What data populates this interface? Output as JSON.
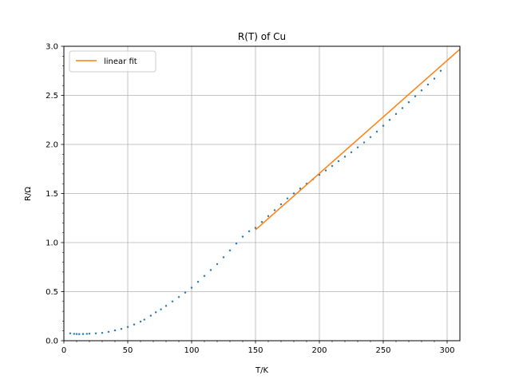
{
  "chart_data": {
    "type": "scatter",
    "title": "R(T) of Cu",
    "xlabel": "T/K",
    "ylabel": "R/Ω",
    "xlim": [
      0,
      310
    ],
    "ylim": [
      0,
      3.0
    ],
    "xticks": [
      0,
      50,
      100,
      150,
      200,
      250,
      300
    ],
    "xtick_labels": [
      "0",
      "50",
      "100",
      "150",
      "200",
      "250",
      "300"
    ],
    "yticks": [
      0.0,
      0.5,
      1.0,
      1.5,
      2.0,
      2.5,
      3.0
    ],
    "ytick_labels": [
      "0.0",
      "0.5",
      "1.0",
      "1.5",
      "2.0",
      "2.5",
      "3.0"
    ],
    "grid": true,
    "legend": {
      "location": "upper-left",
      "entries": [
        "linear fit"
      ]
    },
    "series": [
      {
        "kind": "scatter",
        "color": "#1f77b4",
        "x": [
          5,
          8,
          10,
          12,
          15,
          18,
          20,
          25,
          30,
          35,
          40,
          45,
          50,
          55,
          60,
          63,
          68,
          72,
          76,
          80,
          85,
          90,
          95,
          100,
          105,
          110,
          115,
          120,
          125,
          130,
          135,
          140,
          145,
          150,
          155,
          160,
          165,
          170,
          175,
          180,
          185,
          190,
          195,
          200,
          205,
          210,
          215,
          220,
          225,
          230,
          235,
          240,
          245,
          250,
          255,
          260,
          265,
          270,
          275,
          280,
          285,
          290,
          295
        ],
        "y": [
          0.075,
          0.07,
          0.068,
          0.067,
          0.068,
          0.07,
          0.072,
          0.075,
          0.08,
          0.09,
          0.105,
          0.12,
          0.14,
          0.165,
          0.195,
          0.215,
          0.255,
          0.29,
          0.32,
          0.355,
          0.4,
          0.445,
          0.49,
          0.54,
          0.6,
          0.66,
          0.72,
          0.78,
          0.85,
          0.92,
          0.99,
          1.06,
          1.115,
          1.15,
          1.21,
          1.27,
          1.33,
          1.39,
          1.45,
          1.5,
          1.55,
          1.6,
          1.645,
          1.69,
          1.735,
          1.78,
          1.83,
          1.875,
          1.92,
          1.97,
          2.02,
          2.075,
          2.13,
          2.19,
          2.25,
          2.31,
          2.37,
          2.43,
          2.49,
          2.55,
          2.61,
          2.67,
          2.75
        ]
      },
      {
        "kind": "line",
        "name": "linear fit",
        "color": "#ff7f0e",
        "x": [
          150,
          310
        ],
        "y": [
          1.13,
          2.97
        ]
      }
    ]
  }
}
